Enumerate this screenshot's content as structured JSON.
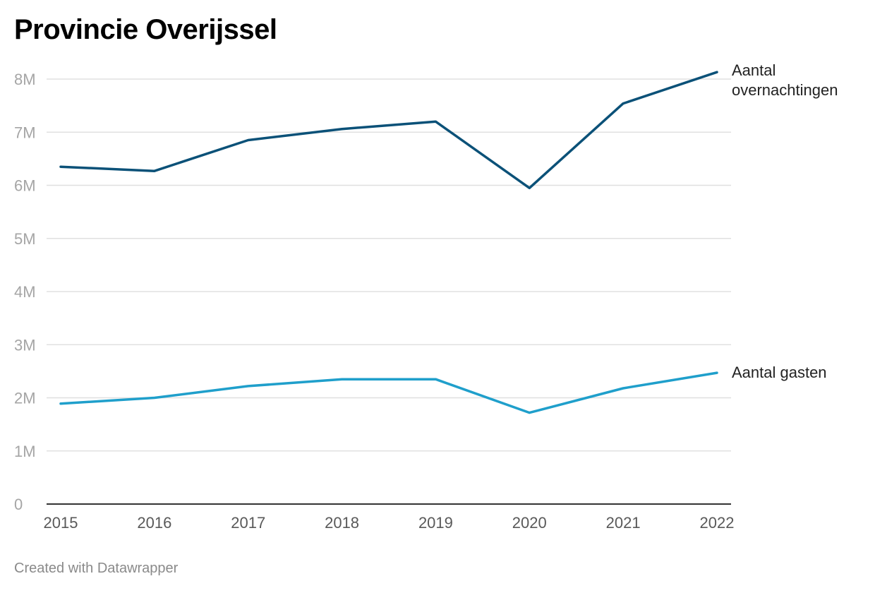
{
  "chart_data": {
    "type": "line",
    "title": "Provincie Overijssel",
    "x": [
      "2015",
      "2016",
      "2017",
      "2018",
      "2019",
      "2020",
      "2021",
      "2022"
    ],
    "ylim": [
      0,
      8000000
    ],
    "y_ticks": [
      {
        "value": 0,
        "label": "0"
      },
      {
        "value": 1000000,
        "label": "1M"
      },
      {
        "value": 2000000,
        "label": "2M"
      },
      {
        "value": 3000000,
        "label": "3M"
      },
      {
        "value": 4000000,
        "label": "4M"
      },
      {
        "value": 5000000,
        "label": "5M"
      },
      {
        "value": 6000000,
        "label": "6M"
      },
      {
        "value": 7000000,
        "label": "7M"
      },
      {
        "value": 8000000,
        "label": "8M"
      }
    ],
    "grid": true,
    "legend": "direct labels at line ends (right)",
    "series": [
      {
        "name": "Aantal overnachtingen",
        "label_lines": [
          "Aantal",
          "overnachtingen"
        ],
        "color": "#0b5178",
        "values": [
          6350000,
          6270000,
          6850000,
          7060000,
          7200000,
          5950000,
          7540000,
          8130000
        ]
      },
      {
        "name": "Aantal gasten",
        "label_lines": [
          "Aantal gasten"
        ],
        "color": "#1f9fcb",
        "values": [
          1890000,
          2000000,
          2220000,
          2350000,
          2350000,
          1720000,
          2180000,
          2470000
        ]
      }
    ]
  },
  "footer": {
    "credit": "Created with Datawrapper"
  }
}
